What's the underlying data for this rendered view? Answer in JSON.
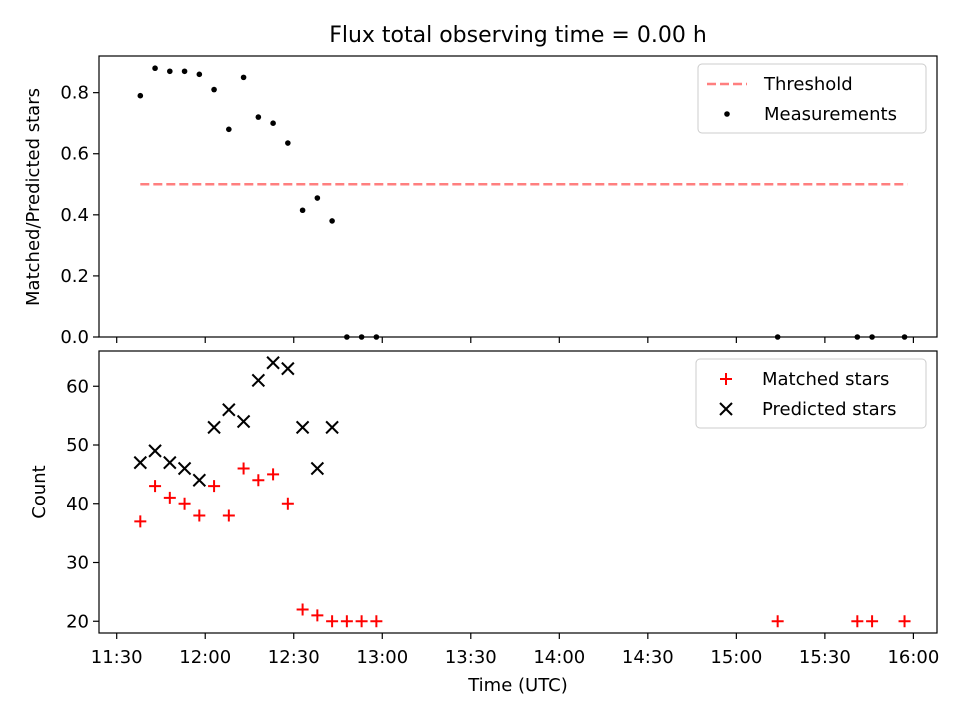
{
  "chart_data": [
    {
      "type": "scatter",
      "title": "Flux total observing time = 0.00 h",
      "xlabel": "",
      "ylabel": "Matched/Predicted stars",
      "xlim": [
        "11:24",
        "16:08"
      ],
      "ylim": [
        0,
        0.92
      ],
      "yticks": [
        0.0,
        0.2,
        0.4,
        0.6,
        0.8
      ],
      "yticklabels": [
        "0.0",
        "0.2",
        "0.4",
        "0.6",
        "0.8"
      ],
      "grid": false,
      "legend": "top-right",
      "series": [
        {
          "name": "Threshold",
          "kind": "line",
          "style": "dashed",
          "color": "#ff7f7f",
          "points": [
            {
              "x": "11:38",
              "y": 0.5
            },
            {
              "x": "15:58",
              "y": 0.5
            }
          ]
        },
        {
          "name": "Measurements",
          "kind": "scatter",
          "marker": "dot",
          "color": "#000000",
          "points": [
            {
              "x": "11:38",
              "y": 0.79
            },
            {
              "x": "11:43",
              "y": 0.88
            },
            {
              "x": "11:48",
              "y": 0.87
            },
            {
              "x": "11:53",
              "y": 0.87
            },
            {
              "x": "11:58",
              "y": 0.86
            },
            {
              "x": "12:03",
              "y": 0.81
            },
            {
              "x": "12:08",
              "y": 0.68
            },
            {
              "x": "12:13",
              "y": 0.85
            },
            {
              "x": "12:18",
              "y": 0.72
            },
            {
              "x": "12:23",
              "y": 0.7
            },
            {
              "x": "12:28",
              "y": 0.635
            },
            {
              "x": "12:33",
              "y": 0.415
            },
            {
              "x": "12:38",
              "y": 0.455
            },
            {
              "x": "12:43",
              "y": 0.38
            },
            {
              "x": "12:48",
              "y": 0.0
            },
            {
              "x": "12:53",
              "y": 0.0
            },
            {
              "x": "12:58",
              "y": 0.0
            },
            {
              "x": "15:14",
              "y": 0.0
            },
            {
              "x": "15:41",
              "y": 0.0
            },
            {
              "x": "15:46",
              "y": 0.0
            },
            {
              "x": "15:57",
              "y": 0.0
            }
          ]
        }
      ]
    },
    {
      "type": "scatter",
      "xlabel": "Time (UTC)",
      "ylabel": "Count",
      "xlim": [
        "11:24",
        "16:08"
      ],
      "ylim": [
        18,
        66
      ],
      "yticks": [
        20,
        30,
        40,
        50,
        60
      ],
      "yticklabels": [
        "20",
        "30",
        "40",
        "50",
        "60"
      ],
      "xticks": [
        "11:30",
        "12:00",
        "12:30",
        "13:00",
        "13:30",
        "14:00",
        "14:30",
        "15:00",
        "15:30",
        "16:00"
      ],
      "xticklabels": [
        "11:30",
        "12:00",
        "12:30",
        "13:00",
        "13:30",
        "14:00",
        "14:30",
        "15:00",
        "15:30",
        "16:00"
      ],
      "grid": false,
      "legend": "top-right",
      "series": [
        {
          "name": "Matched stars",
          "kind": "scatter",
          "marker": "plus",
          "color": "#ff0000",
          "points": [
            {
              "x": "11:38",
              "y": 37
            },
            {
              "x": "11:43",
              "y": 43
            },
            {
              "x": "11:48",
              "y": 41
            },
            {
              "x": "11:53",
              "y": 40
            },
            {
              "x": "11:58",
              "y": 38
            },
            {
              "x": "12:03",
              "y": 43
            },
            {
              "x": "12:08",
              "y": 38
            },
            {
              "x": "12:13",
              "y": 46
            },
            {
              "x": "12:18",
              "y": 44
            },
            {
              "x": "12:23",
              "y": 45
            },
            {
              "x": "12:28",
              "y": 40
            },
            {
              "x": "12:33",
              "y": 22
            },
            {
              "x": "12:38",
              "y": 21
            },
            {
              "x": "12:43",
              "y": 20
            },
            {
              "x": "12:48",
              "y": 20
            },
            {
              "x": "12:53",
              "y": 20
            },
            {
              "x": "12:58",
              "y": 20
            },
            {
              "x": "15:14",
              "y": 20
            },
            {
              "x": "15:41",
              "y": 20
            },
            {
              "x": "15:46",
              "y": 20
            },
            {
              "x": "15:57",
              "y": 20
            }
          ]
        },
        {
          "name": "Predicted stars",
          "kind": "scatter",
          "marker": "x",
          "color": "#000000",
          "points": [
            {
              "x": "11:38",
              "y": 47
            },
            {
              "x": "11:43",
              "y": 49
            },
            {
              "x": "11:48",
              "y": 47
            },
            {
              "x": "11:53",
              "y": 46
            },
            {
              "x": "11:58",
              "y": 44
            },
            {
              "x": "12:03",
              "y": 53
            },
            {
              "x": "12:08",
              "y": 56
            },
            {
              "x": "12:13",
              "y": 54
            },
            {
              "x": "12:18",
              "y": 61
            },
            {
              "x": "12:23",
              "y": 64
            },
            {
              "x": "12:28",
              "y": 63
            },
            {
              "x": "12:33",
              "y": 53
            },
            {
              "x": "12:38",
              "y": 46
            },
            {
              "x": "12:43",
              "y": 53
            }
          ]
        }
      ]
    }
  ]
}
